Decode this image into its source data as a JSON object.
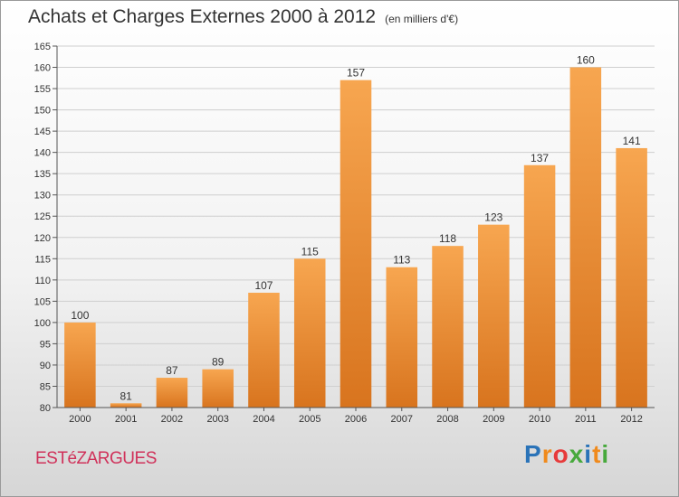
{
  "header": {
    "title": "Achats et Charges Externes 2000 à 2012",
    "subtitle": "(en milliers d'€)"
  },
  "footer": {
    "town": "ESTéZARGUES",
    "brand": [
      "P",
      "r",
      "o",
      "x",
      "i",
      "t",
      "i"
    ],
    "brand_colors": [
      "#2a73b8",
      "#f08a1c",
      "#e73a3a",
      "#47a93c",
      "#2a73b8",
      "#f08a1c",
      "#47a93c"
    ]
  },
  "colors": {
    "bar_top": "#f7a650",
    "bar_bottom": "#d8741e",
    "grid": "#cfcfcf"
  },
  "chart_data": {
    "type": "bar",
    "title": "Achats et Charges Externes 2000 à 2012",
    "subtitle": "(en milliers d'€)",
    "categories": [
      "2000",
      "2001",
      "2002",
      "2003",
      "2004",
      "2005",
      "2006",
      "2007",
      "2008",
      "2009",
      "2010",
      "2011",
      "2012"
    ],
    "values": [
      100,
      81,
      87,
      89,
      107,
      115,
      157,
      113,
      118,
      123,
      137,
      160,
      141
    ],
    "ylim": [
      80,
      165
    ],
    "yticks": [
      80,
      85,
      90,
      95,
      100,
      105,
      110,
      115,
      120,
      125,
      130,
      135,
      140,
      145,
      150,
      155,
      160,
      165
    ],
    "grid": true,
    "data_labels": true
  }
}
